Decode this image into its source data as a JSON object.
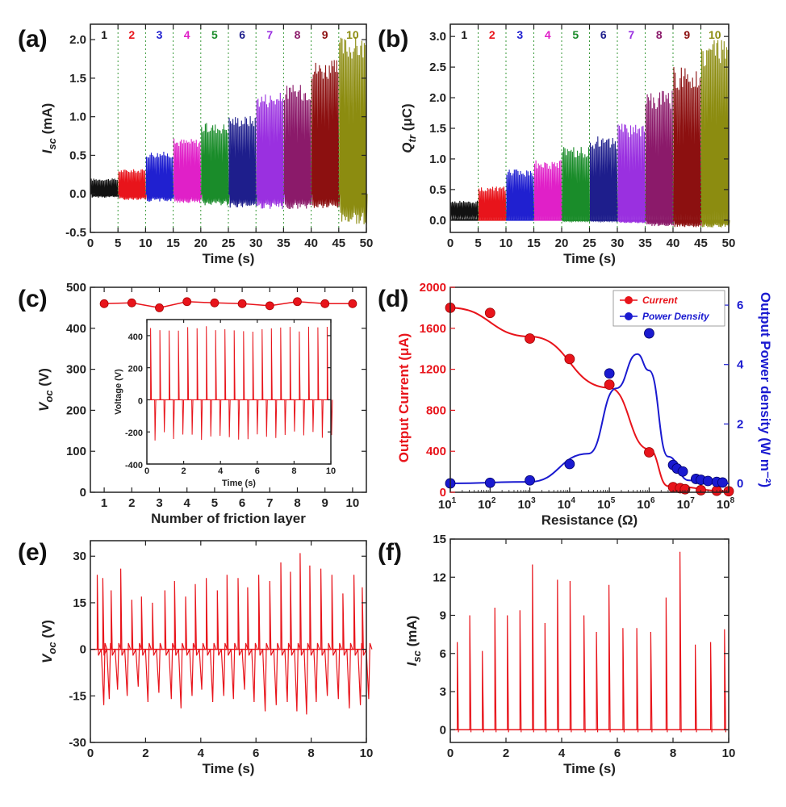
{
  "figure": {
    "panels": [
      {
        "id": "a",
        "label": "(a)",
        "chart_data": {
          "type": "line",
          "xlabel": "Time (s)",
          "ylabel": "I_sc (mA)",
          "xlim": [
            0,
            50
          ],
          "ylim": [
            -0.5,
            2.2
          ],
          "xticks": [
            0,
            5,
            10,
            15,
            20,
            25,
            30,
            35,
            40,
            45,
            50
          ],
          "yticks": [
            -0.5,
            0.0,
            0.5,
            1.0,
            1.5,
            2.0
          ],
          "ytick_labels": [
            "-0.5",
            "0.0",
            "0.5",
            "1.0",
            "1.5",
            "2.0"
          ],
          "grid": false,
          "segment_labels": [
            "1",
            "2",
            "3",
            "4",
            "5",
            "6",
            "7",
            "8",
            "9",
            "10"
          ],
          "segment_colors": [
            "#111111",
            "#e8141b",
            "#2020d0",
            "#e020c8",
            "#1a8c2a",
            "#1e1e8c",
            "#9a30e0",
            "#8b1a6a",
            "#8c1010",
            "#8c8c10"
          ],
          "series": [
            {
              "name": "1",
              "x_range": [
                0,
                5
              ],
              "peak": 0.2,
              "trough": -0.05
            },
            {
              "name": "2",
              "x_range": [
                5,
                10
              ],
              "peak": 0.32,
              "trough": -0.08
            },
            {
              "name": "3",
              "x_range": [
                10,
                15
              ],
              "peak": 0.55,
              "trough": -0.1
            },
            {
              "name": "4",
              "x_range": [
                15,
                20
              ],
              "peak": 0.72,
              "trough": -0.12
            },
            {
              "name": "5",
              "x_range": [
                20,
                25
              ],
              "peak": 0.92,
              "trough": -0.15
            },
            {
              "name": "6",
              "x_range": [
                25,
                30
              ],
              "peak": 1.02,
              "trough": -0.18
            },
            {
              "name": "7",
              "x_range": [
                30,
                35
              ],
              "peak": 1.32,
              "trough": -0.2
            },
            {
              "name": "8",
              "x_range": [
                35,
                40
              ],
              "peak": 1.42,
              "trough": -0.2
            },
            {
              "name": "9",
              "x_range": [
                40,
                45
              ],
              "peak": 1.74,
              "trough": -0.2
            },
            {
              "name": "10",
              "x_range": [
                45,
                50
              ],
              "peak": 2.05,
              "trough": -0.4
            }
          ]
        }
      },
      {
        "id": "b",
        "label": "(b)",
        "chart_data": {
          "type": "line",
          "xlabel": "Time (s)",
          "ylabel": "Q_tr (μC)",
          "xlim": [
            0,
            50
          ],
          "ylim": [
            -0.2,
            3.2
          ],
          "xticks": [
            0,
            5,
            10,
            15,
            20,
            25,
            30,
            35,
            40,
            45,
            50
          ],
          "yticks": [
            0.0,
            0.5,
            1.0,
            1.5,
            2.0,
            2.5,
            3.0
          ],
          "ytick_labels": [
            "0.0",
            "0.5",
            "1.0",
            "1.5",
            "2.0",
            "2.5",
            "3.0"
          ],
          "grid": false,
          "segment_labels": [
            "1",
            "2",
            "3",
            "4",
            "5",
            "6",
            "7",
            "8",
            "9",
            "10"
          ],
          "segment_colors": [
            "#111111",
            "#e8141b",
            "#2020d0",
            "#e020c8",
            "#1a8c2a",
            "#1e1e8c",
            "#9a30e0",
            "#8b1a6a",
            "#8c1010",
            "#8c8c10"
          ],
          "series": [
            {
              "name": "1",
              "x_range": [
                0,
                5
              ],
              "peak": 0.32,
              "trough": 0.08
            },
            {
              "name": "2",
              "x_range": [
                5,
                10
              ],
              "peak": 0.55,
              "trough": 0.02
            },
            {
              "name": "3",
              "x_range": [
                10,
                15
              ],
              "peak": 0.83,
              "trough": 0.02
            },
            {
              "name": "4",
              "x_range": [
                15,
                20
              ],
              "peak": 0.98,
              "trough": 0.0
            },
            {
              "name": "5",
              "x_range": [
                20,
                25
              ],
              "peak": 1.2,
              "trough": -0.02
            },
            {
              "name": "6",
              "x_range": [
                25,
                30
              ],
              "peak": 1.37,
              "trough": -0.02
            },
            {
              "name": "7",
              "x_range": [
                30,
                35
              ],
              "peak": 1.58,
              "trough": -0.05
            },
            {
              "name": "8",
              "x_range": [
                35,
                40
              ],
              "peak": 2.12,
              "trough": -0.1
            },
            {
              "name": "9",
              "x_range": [
                40,
                45
              ],
              "peak": 2.5,
              "trough": -0.12
            },
            {
              "name": "10",
              "x_range": [
                45,
                50
              ],
              "peak": 2.95,
              "trough": -0.12
            }
          ]
        }
      },
      {
        "id": "c",
        "label": "(c)",
        "chart_data": {
          "type": "line",
          "xlabel": "Number of friction layer",
          "ylabel": "V_OC (V)",
          "xlim": [
            0.5,
            10.5
          ],
          "ylim": [
            0,
            500
          ],
          "xticks": [
            1,
            2,
            3,
            4,
            5,
            6,
            7,
            8,
            9,
            10
          ],
          "yticks": [
            0,
            100,
            200,
            300,
            400,
            500
          ],
          "grid": false,
          "x": [
            1,
            2,
            3,
            4,
            5,
            6,
            7,
            8,
            9,
            10
          ],
          "values": [
            460,
            462,
            450,
            465,
            462,
            460,
            455,
            465,
            460,
            460
          ],
          "color": "#e8141b",
          "inset": {
            "type": "line",
            "xlabel": "Time (s)",
            "ylabel": "Voltage (V)",
            "xlim": [
              0,
              10
            ],
            "ylim": [
              -400,
              500
            ],
            "xticks": [
              0,
              2,
              4,
              6,
              8,
              10
            ],
            "yticks": [
              -400,
              -200,
              0,
              200,
              400
            ],
            "pulse_count": 20,
            "peak": 460,
            "trough": -260
          }
        }
      },
      {
        "id": "d",
        "label": "(d)",
        "chart_data": {
          "type": "scatter",
          "xlabel": "Resistance (Ω)",
          "ylabel": "Output Current (μA)",
          "ylabel_right": "Output Power density (W m⁻²)",
          "x_scale": "log",
          "xlim": [
            10,
            100000000
          ],
          "xtick_exponents": [
            1,
            2,
            3,
            4,
            5,
            6,
            7,
            8
          ],
          "ylim": [
            0,
            2000
          ],
          "yticks": [
            0,
            400,
            800,
            1200,
            1600,
            2000
          ],
          "ylim_right": [
            -0.3,
            6.6
          ],
          "yticks_right": [
            0,
            2,
            4,
            6
          ],
          "grid": false,
          "legend_position": "top-right",
          "series": [
            {
              "name": "Current",
              "axis": "left",
              "color": "#e8141b",
              "x": [
                10,
                100,
                1000,
                10000,
                100000,
                1000000,
                4000000,
                6000000,
                8000000,
                20000000,
                50000000,
                100000000
              ],
              "values": [
                1800,
                1750,
                1500,
                1300,
                1050,
                390,
                50,
                40,
                30,
                20,
                15,
                10
              ]
            },
            {
              "name": "Power Density",
              "axis": "right",
              "color": "#1a1ad0",
              "x": [
                10,
                100,
                1000,
                10000,
                100000,
                1000000,
                4000000,
                5000000,
                7000000,
                15000000,
                20000000,
                30000000,
                50000000,
                70000000
              ],
              "values": [
                0.0,
                0.02,
                0.1,
                0.65,
                3.7,
                5.05,
                0.62,
                0.5,
                0.4,
                0.15,
                0.12,
                0.08,
                0.05,
                0.03
              ]
            }
          ]
        }
      },
      {
        "id": "e",
        "label": "(e)",
        "chart_data": {
          "type": "line",
          "xlabel": "Time (s)",
          "ylabel": "V_OC (V)",
          "xlim": [
            0,
            10
          ],
          "ylim": [
            -30,
            35
          ],
          "xticks": [
            0,
            2,
            4,
            6,
            8,
            10
          ],
          "yticks": [
            -30,
            -15,
            0,
            15,
            30
          ],
          "grid": false,
          "color": "#e8141b",
          "pulses": [
            {
              "x": 0.25,
              "peak": 24,
              "trough": -18
            },
            {
              "x": 0.45,
              "peak": 23,
              "trough": -16
            },
            {
              "x": 0.75,
              "peak": 19,
              "trough": -13
            },
            {
              "x": 1.1,
              "peak": 26,
              "trough": -15
            },
            {
              "x": 1.5,
              "peak": 16,
              "trough": -12
            },
            {
              "x": 1.85,
              "peak": 17,
              "trough": -17
            },
            {
              "x": 2.25,
              "peak": 15,
              "trough": -14
            },
            {
              "x": 2.7,
              "peak": 19,
              "trough": -16
            },
            {
              "x": 3.05,
              "peak": 22,
              "trough": -19
            },
            {
              "x": 3.45,
              "peak": 17,
              "trough": -15
            },
            {
              "x": 3.8,
              "peak": 21,
              "trough": -13
            },
            {
              "x": 4.2,
              "peak": 23,
              "trough": -17
            },
            {
              "x": 4.6,
              "peak": 19,
              "trough": -15
            },
            {
              "x": 4.95,
              "peak": 24,
              "trough": -16
            },
            {
              "x": 5.35,
              "peak": 23,
              "trough": -13
            },
            {
              "x": 5.7,
              "peak": 20,
              "trough": -17
            },
            {
              "x": 6.1,
              "peak": 24,
              "trough": -20
            },
            {
              "x": 6.5,
              "peak": 22,
              "trough": -18
            },
            {
              "x": 6.9,
              "peak": 28,
              "trough": -17
            },
            {
              "x": 7.25,
              "peak": 25,
              "trough": -20
            },
            {
              "x": 7.6,
              "peak": 31,
              "trough": -21
            },
            {
              "x": 7.95,
              "peak": 27,
              "trough": -17
            },
            {
              "x": 8.35,
              "peak": 26,
              "trough": -15
            },
            {
              "x": 8.75,
              "peak": 24,
              "trough": -16
            },
            {
              "x": 9.15,
              "peak": 18,
              "trough": -19
            },
            {
              "x": 9.55,
              "peak": 24,
              "trough": -18
            },
            {
              "x": 9.85,
              "peak": 20,
              "trough": -16
            }
          ]
        }
      },
      {
        "id": "f",
        "label": "(f)",
        "chart_data": {
          "type": "line",
          "xlabel": "Time (s)",
          "ylabel": "I_sc (mA)",
          "xlim": [
            0,
            10
          ],
          "ylim": [
            -1,
            15
          ],
          "xticks": [
            0,
            2,
            4,
            6,
            8,
            10
          ],
          "yticks": [
            0,
            3,
            6,
            9,
            12,
            15
          ],
          "grid": false,
          "color": "#e8141b",
          "pulses": [
            {
              "x": 0.25,
              "peak": 6.9
            },
            {
              "x": 0.7,
              "peak": 9.0
            },
            {
              "x": 1.15,
              "peak": 6.2
            },
            {
              "x": 1.6,
              "peak": 9.6
            },
            {
              "x": 2.05,
              "peak": 9.0
            },
            {
              "x": 2.5,
              "peak": 9.4
            },
            {
              "x": 2.95,
              "peak": 13.0
            },
            {
              "x": 3.4,
              "peak": 8.4
            },
            {
              "x": 3.85,
              "peak": 11.8
            },
            {
              "x": 4.3,
              "peak": 11.7
            },
            {
              "x": 4.8,
              "peak": 9.0
            },
            {
              "x": 5.25,
              "peak": 7.7
            },
            {
              "x": 5.7,
              "peak": 11.4
            },
            {
              "x": 6.2,
              "peak": 8.0
            },
            {
              "x": 6.7,
              "peak": 8.0
            },
            {
              "x": 7.2,
              "peak": 7.7
            },
            {
              "x": 7.75,
              "peak": 10.4
            },
            {
              "x": 8.25,
              "peak": 14.0
            },
            {
              "x": 8.8,
              "peak": 6.7
            },
            {
              "x": 9.35,
              "peak": 6.9
            },
            {
              "x": 9.85,
              "peak": 7.9
            }
          ]
        }
      }
    ]
  }
}
